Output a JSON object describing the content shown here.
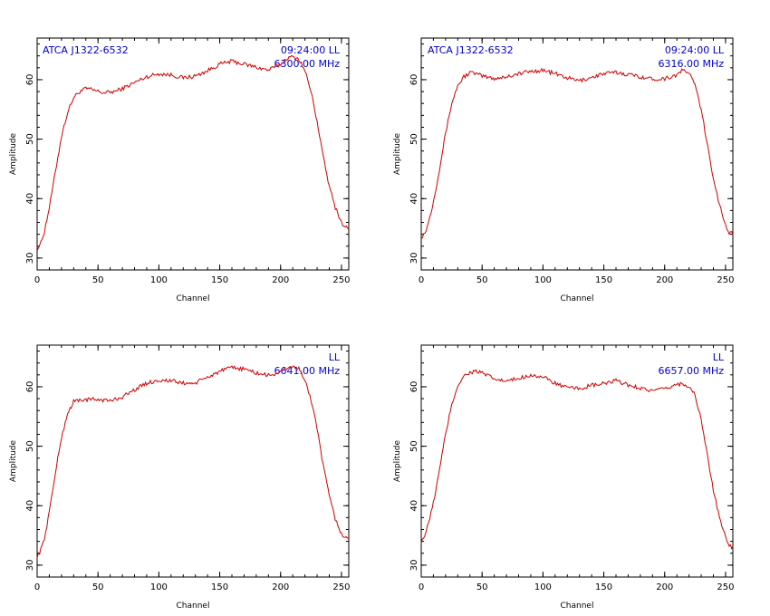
{
  "colors": {
    "trace": "#cc0000",
    "annotation": "#0000cc",
    "axes": "#000000",
    "background": "#ffffff"
  },
  "chart_data": [
    {
      "type": "line",
      "xlabel": "Channel",
      "ylabel": "Amplitude",
      "xlim": [
        0,
        256
      ],
      "ylim": [
        28,
        67
      ],
      "xticks": [
        0,
        50,
        100,
        150,
        200,
        250
      ],
      "yticks": [
        30,
        40,
        50,
        60
      ],
      "annotation_left": "ATCA J1322-6532",
      "annotation_right_1": "09:24:00  LL",
      "annotation_right_2": "6300.00  MHz",
      "series": [
        {
          "x": [
            0,
            3,
            6,
            10,
            15,
            20,
            25,
            30,
            35,
            40,
            45,
            50,
            55,
            60,
            65,
            70,
            80,
            90,
            100,
            110,
            120,
            130,
            140,
            150,
            160,
            170,
            180,
            190,
            200,
            205,
            210,
            215,
            220,
            225,
            230,
            235,
            240,
            245,
            250,
            253,
            256
          ],
          "y": [
            31.5,
            32.5,
            34.5,
            38.5,
            44.5,
            50.5,
            54.5,
            57.0,
            58.0,
            58.5,
            58.3,
            58.0,
            57.8,
            57.9,
            58.1,
            58.5,
            59.5,
            60.5,
            61.0,
            60.8,
            60.3,
            60.6,
            61.5,
            62.6,
            63.1,
            62.6,
            62.1,
            61.6,
            62.6,
            63.6,
            63.8,
            63.5,
            61.5,
            58.0,
            53.0,
            47.0,
            42.0,
            38.5,
            36.0,
            35.2,
            35.0
          ]
        }
      ]
    },
    {
      "type": "line",
      "xlabel": "Channel",
      "ylabel": "Amplitude",
      "xlim": [
        0,
        256
      ],
      "ylim": [
        28,
        67
      ],
      "xticks": [
        0,
        50,
        100,
        150,
        200,
        250
      ],
      "yticks": [
        30,
        40,
        50,
        60
      ],
      "annotation_left": "ATCA J1322-6532",
      "annotation_right_1": "09:24:00  LL",
      "annotation_right_2": "6316.00  MHz",
      "series": [
        {
          "x": [
            0,
            3,
            6,
            10,
            15,
            20,
            25,
            30,
            35,
            40,
            45,
            50,
            55,
            60,
            70,
            80,
            90,
            100,
            110,
            120,
            130,
            140,
            150,
            160,
            170,
            180,
            190,
            200,
            210,
            215,
            220,
            225,
            230,
            235,
            240,
            245,
            250,
            253,
            256
          ],
          "y": [
            33.5,
            34.2,
            36.0,
            39.5,
            45.0,
            51.0,
            56.0,
            59.0,
            60.5,
            61.2,
            61.0,
            60.6,
            60.4,
            60.2,
            60.5,
            61.0,
            61.4,
            61.6,
            61.0,
            60.3,
            59.8,
            60.4,
            61.0,
            61.2,
            60.9,
            60.5,
            60.1,
            60.2,
            60.8,
            61.6,
            61.2,
            59.0,
            55.0,
            49.0,
            43.5,
            39.0,
            35.5,
            34.3,
            34.0
          ]
        }
      ]
    },
    {
      "type": "line",
      "xlabel": "Channel",
      "ylabel": "Amplitude",
      "xlim": [
        0,
        256
      ],
      "ylim": [
        28,
        67
      ],
      "xticks": [
        0,
        50,
        100,
        150,
        200,
        250
      ],
      "yticks": [
        30,
        40,
        50,
        60
      ],
      "annotation_left": "",
      "annotation_right_1": "LL",
      "annotation_right_2": "6641.00  MHz",
      "series": [
        {
          "x": [
            0,
            3,
            6,
            10,
            15,
            20,
            25,
            30,
            35,
            40,
            50,
            60,
            70,
            80,
            90,
            100,
            110,
            120,
            130,
            140,
            150,
            160,
            170,
            180,
            190,
            200,
            205,
            210,
            215,
            220,
            225,
            230,
            235,
            240,
            245,
            250,
            253,
            256
          ],
          "y": [
            31.5,
            32.5,
            34.5,
            39.0,
            45.5,
            51.5,
            55.5,
            57.5,
            57.8,
            57.8,
            57.9,
            57.6,
            58.3,
            59.5,
            60.6,
            61.1,
            61.0,
            60.6,
            60.6,
            61.6,
            62.6,
            63.2,
            63.0,
            62.3,
            61.9,
            62.4,
            63.1,
            63.4,
            63.0,
            61.2,
            57.8,
            52.8,
            46.8,
            41.5,
            37.8,
            35.2,
            34.6,
            34.5
          ]
        }
      ]
    },
    {
      "type": "line",
      "xlabel": "Channel",
      "ylabel": "Amplitude",
      "xlim": [
        0,
        256
      ],
      "ylim": [
        28,
        67
      ],
      "xticks": [
        0,
        50,
        100,
        150,
        200,
        250
      ],
      "yticks": [
        30,
        40,
        50,
        60
      ],
      "annotation_left": "",
      "annotation_right_1": "LL",
      "annotation_right_2": "6657.00  MHz",
      "series": [
        {
          "x": [
            0,
            3,
            6,
            10,
            15,
            20,
            25,
            30,
            35,
            40,
            45,
            50,
            55,
            60,
            70,
            80,
            90,
            100,
            110,
            120,
            130,
            140,
            150,
            160,
            170,
            180,
            190,
            200,
            210,
            215,
            220,
            225,
            230,
            235,
            240,
            245,
            250,
            253,
            256
          ],
          "y": [
            34.0,
            35.0,
            37.0,
            40.5,
            46.0,
            52.0,
            57.0,
            60.2,
            61.8,
            62.4,
            62.6,
            62.3,
            61.8,
            61.3,
            60.9,
            61.4,
            62.0,
            61.6,
            60.6,
            59.8,
            59.7,
            60.2,
            60.5,
            61.0,
            60.3,
            59.8,
            59.3,
            59.6,
            60.4,
            60.5,
            60.1,
            58.5,
            54.5,
            48.5,
            42.5,
            38.0,
            34.6,
            33.4,
            33.0
          ]
        }
      ]
    }
  ]
}
